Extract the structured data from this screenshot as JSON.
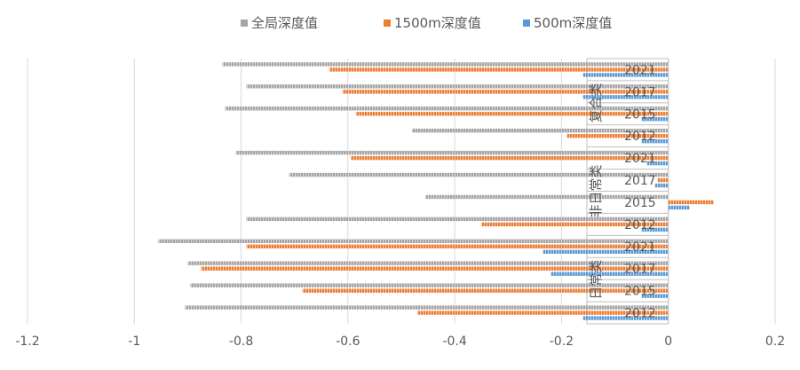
{
  "chart_data": {
    "type": "bar",
    "orientation": "horizontal",
    "title": "",
    "xlim": [
      -1.2,
      0.2
    ],
    "x_ticks": [
      "-1.2",
      "-1",
      "-0.8",
      "-0.6",
      "-0.4",
      "-0.2",
      "0",
      "0.2"
    ],
    "legend_position": "top-center",
    "groups": [
      {
        "label": "复合类",
        "years": [
          "2021",
          "2017",
          "2015",
          "2012"
        ]
      },
      {
        "label": "非日常类",
        "years": [
          "2021",
          "2017",
          "2015",
          "2012"
        ]
      },
      {
        "label": "日常类",
        "years": [
          "2021",
          "2017",
          "2015",
          "2012"
        ]
      }
    ],
    "series": [
      {
        "name": "全局深度值",
        "color": "#a5a5a5",
        "values": [
          -0.835,
          -0.79,
          -0.83,
          -0.48,
          -0.81,
          -0.71,
          -0.455,
          -0.79,
          -0.955,
          -0.9,
          -0.895,
          -0.905
        ]
      },
      {
        "name": "1500m深度值",
        "color": "#ed7d31",
        "values": [
          -0.635,
          -0.61,
          -0.585,
          -0.19,
          -0.595,
          -0.02,
          0.085,
          -0.35,
          -0.79,
          -0.875,
          -0.685,
          -0.47
        ]
      },
      {
        "name": "500m深度值",
        "color": "#5b9bd5",
        "values": [
          -0.16,
          -0.16,
          -0.05,
          -0.05,
          -0.04,
          -0.025,
          0.04,
          -0.05,
          -0.235,
          -0.22,
          -0.05,
          -0.16
        ]
      }
    ]
  }
}
